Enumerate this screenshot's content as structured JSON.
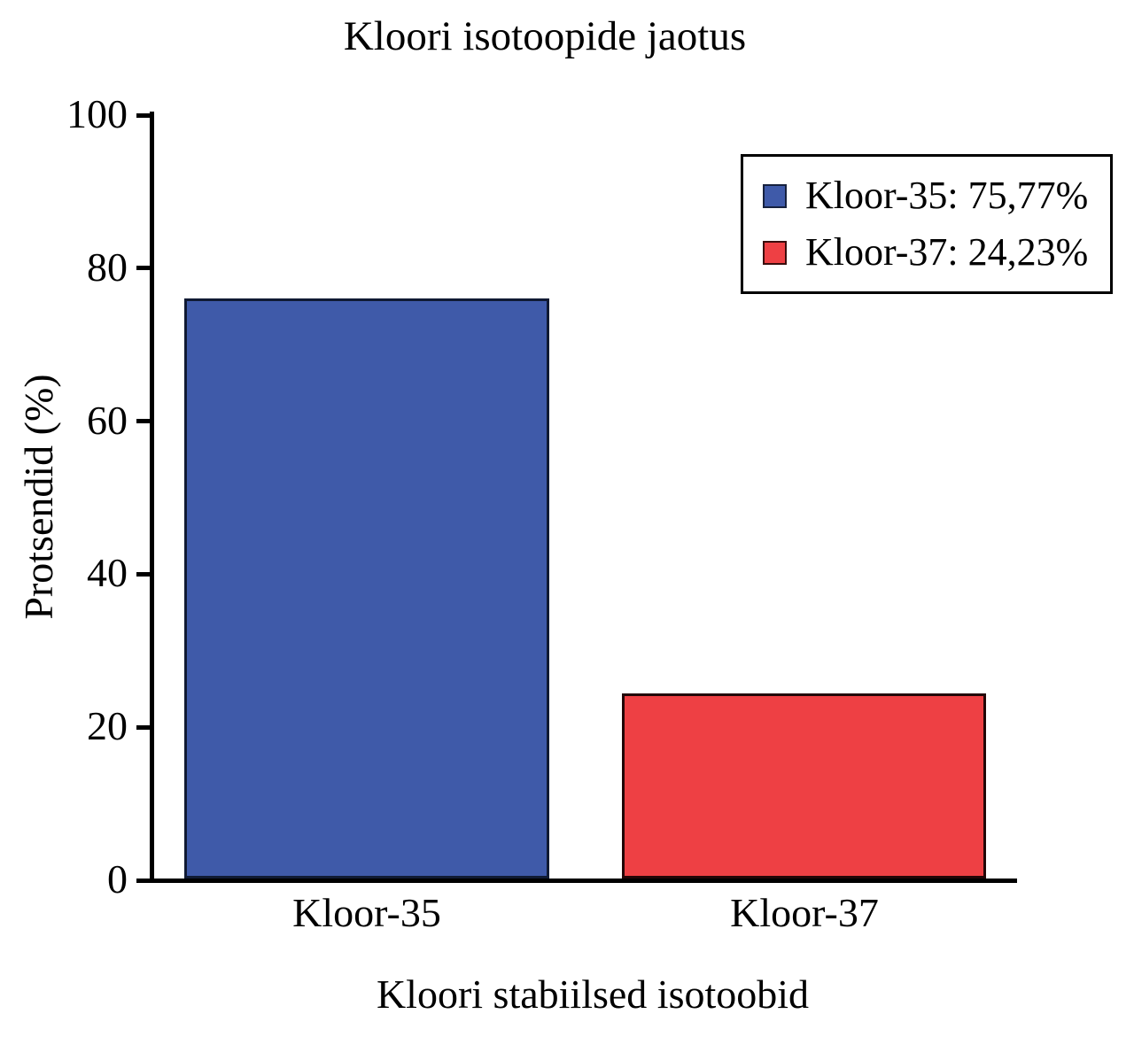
{
  "chart_data": {
    "type": "bar",
    "title": "Kloori isotoopide jaotus",
    "xlabel": "Kloori stabiilsed isotoobid",
    "ylabel": "Protsendid (%)",
    "categories": [
      "Kloor-35",
      "Kloor-37"
    ],
    "values": [
      75.77,
      24.23
    ],
    "ylim": [
      0,
      100
    ],
    "yticks": [
      0,
      20,
      40,
      60,
      80,
      100
    ],
    "grid": false,
    "bar_colors": [
      "#3f5aa9",
      "#ee4044"
    ],
    "bar_edge_colors": [
      "#101a33",
      "#230607"
    ],
    "axis_color": "#000000",
    "legend": {
      "position": "upper right",
      "entries": [
        {
          "label": "Kloor-35: 75,77%",
          "color": "#3f5aa9",
          "edge": "#16213e"
        },
        {
          "label": "Kloor-37: 24,23%",
          "color": "#ee4044",
          "edge": "#3a0d0d"
        }
      ]
    }
  }
}
